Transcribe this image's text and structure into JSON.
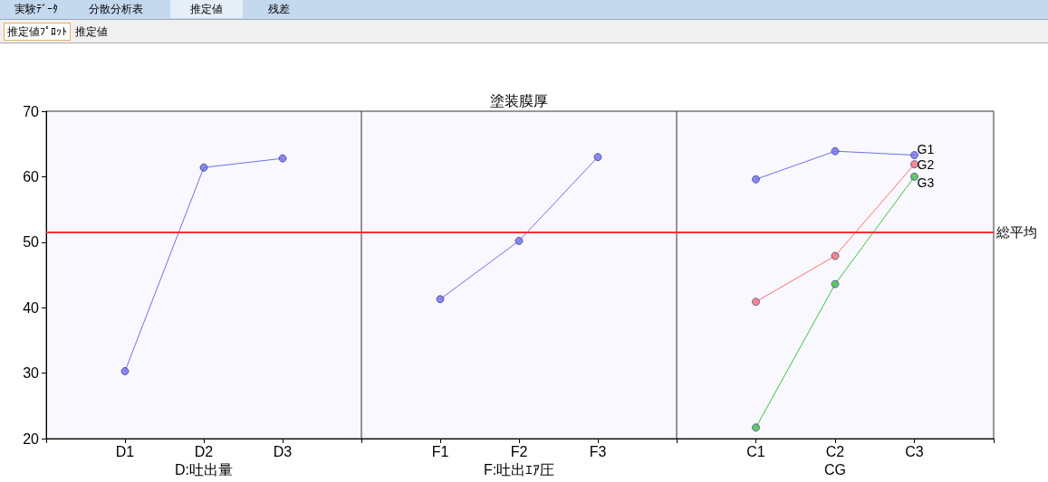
{
  "chart_data": [
    {
      "type": "line",
      "categories": [
        "D1",
        "D2",
        "D3"
      ],
      "xlabel": "D:吐出量",
      "ylim": [
        20,
        70
      ],
      "yticks": [
        20,
        30,
        40,
        50,
        60,
        70
      ],
      "marker": "circle",
      "legend": false,
      "series": [
        {
          "color": "#6f6fe8",
          "values": [
            30.3,
            61.4,
            62.8
          ]
        }
      ],
      "ref_lines": [
        {
          "axis": "y",
          "value": 51.5,
          "label": null,
          "color": "#ff3030"
        }
      ],
      "annotations": [
        "実験ﾃﾞｰﾀ",
        "分散分析表",
        "推定値",
        "残差",
        "推定値ﾌﾟﾛｯﾄ",
        "推定値"
      ]
    },
    {
      "type": "line",
      "title": "塗装膜厚",
      "categories": [
        "F1",
        "F2",
        "F3"
      ],
      "xlabel": "F:吐出ｴｱ圧",
      "ylim": [
        20,
        70
      ],
      "yticks": [
        20,
        30,
        40,
        50,
        60,
        70
      ],
      "tick_labels": "x",
      "marker": "circle",
      "legend": false,
      "series": [
        {
          "color": "#6f6fe8",
          "values": [
            41.3,
            50.2,
            63.0
          ]
        }
      ],
      "ref_lines": [
        {
          "axis": "y",
          "value": 51.5,
          "label": null,
          "color": "#ff3030"
        }
      ]
    },
    {
      "type": "line",
      "categories": [
        "C1",
        "C2",
        "C3"
      ],
      "xlabel": "CG",
      "ylim": [
        20,
        70
      ],
      "yticks": [
        20,
        30,
        40,
        50,
        60,
        70
      ],
      "tick_labels": "x",
      "marker": "circle",
      "legend": false,
      "series": [
        {
          "name": "G1",
          "color": "#6f6fe8",
          "values": [
            59.6,
            63.9,
            63.3
          ]
        },
        {
          "name": "G2",
          "color": "#ff6f6f",
          "values": [
            40.9,
            47.9,
            61.9
          ]
        },
        {
          "name": "G3",
          "color": "#3fc03f",
          "values": [
            21.7,
            43.6,
            60.0
          ]
        }
      ],
      "ref_lines": [
        {
          "axis": "y",
          "value": 51.5,
          "label": "総平均",
          "color": "#ff3030"
        }
      ]
    }
  ]
}
